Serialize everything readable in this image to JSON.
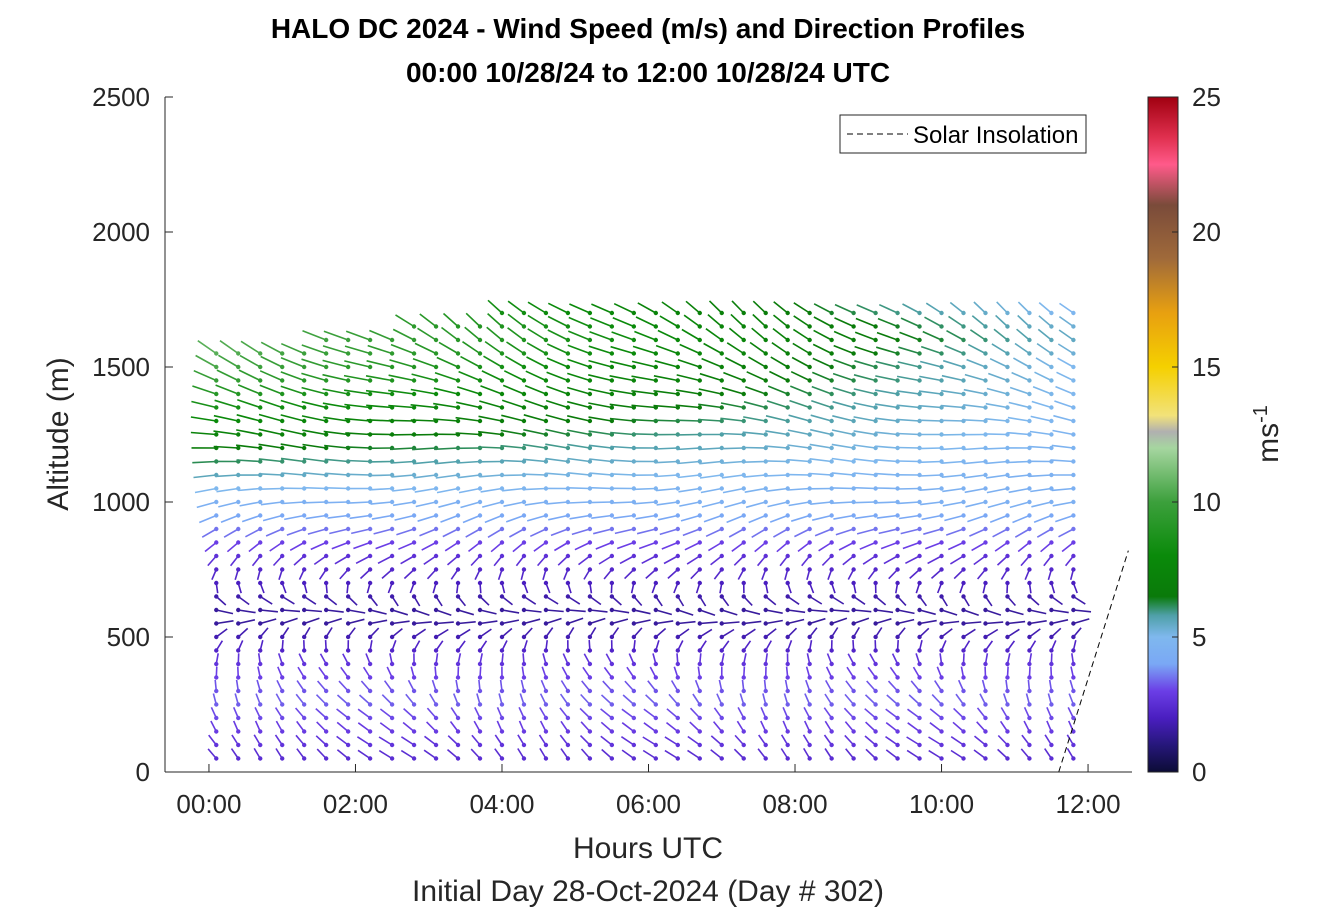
{
  "chart_data": {
    "type": "wind-barb profile",
    "title": "HALO DC 2024 - Wind Speed (m/s) and Direction Profiles",
    "subtitle": "00:00 10/28/24 to 12:00 10/28/24  UTC",
    "xlabel": "Hours UTC",
    "xlabel2": "Initial Day 28-Oct-2024 (Day # 302)",
    "ylabel": "Altitude (m)",
    "colorbar_label_base": "ms",
    "colorbar_label_exp": "-1",
    "x_ticks": [
      "00:00",
      "02:00",
      "04:00",
      "06:00",
      "08:00",
      "10:00",
      "12:00"
    ],
    "x_tick_hours": [
      0,
      2,
      4,
      6,
      8,
      10,
      12
    ],
    "xlim_hours": [
      -0.6,
      12.6
    ],
    "y_ticks": [
      "0",
      "500",
      "1000",
      "1500",
      "2000",
      "2500"
    ],
    "y_tick_values": [
      0,
      500,
      1000,
      1500,
      2000,
      2500
    ],
    "ylim": [
      0,
      2500
    ],
    "colorbar_ticks": [
      "0",
      "5",
      "10",
      "15",
      "20",
      "25"
    ],
    "colorbar_tick_values": [
      0,
      5,
      10,
      15,
      20,
      25
    ],
    "clim": [
      0,
      25
    ],
    "legend": {
      "placement": "top-right",
      "entries": [
        {
          "label": "Solar Insolation",
          "style": "dashed",
          "color": "#000000"
        }
      ]
    },
    "grid": false,
    "profile_hours": {
      "start": 0.1,
      "end": 11.8,
      "step": 0.3
    },
    "profile_levels": [
      {
        "altitude": 50,
        "speed": 2.5,
        "direction": 330
      },
      {
        "altitude": 100,
        "speed": 2.7,
        "direction": 330
      },
      {
        "altitude": 150,
        "speed": 2.9,
        "direction": 335
      },
      {
        "altitude": 200,
        "speed": 3.1,
        "direction": 335
      },
      {
        "altitude": 250,
        "speed": 3.3,
        "direction": 340
      },
      {
        "altitude": 300,
        "speed": 3.2,
        "direction": 345
      },
      {
        "altitude": 350,
        "speed": 3.0,
        "direction": 350
      },
      {
        "altitude": 400,
        "speed": 2.7,
        "direction": 355
      },
      {
        "altitude": 450,
        "speed": 2.2,
        "direction": 10
      },
      {
        "altitude": 500,
        "speed": 1.8,
        "direction": 30
      },
      {
        "altitude": 550,
        "speed": 1.5,
        "direction": 70
      },
      {
        "altitude": 600,
        "speed": 1.5,
        "direction": 110
      },
      {
        "altitude": 650,
        "speed": 1.7,
        "direction": 150
      },
      {
        "altitude": 700,
        "speed": 2.0,
        "direction": 180
      },
      {
        "altitude": 750,
        "speed": 2.3,
        "direction": 200
      },
      {
        "altitude": 800,
        "speed": 2.6,
        "direction": 215
      },
      {
        "altitude": 850,
        "speed": 3.0,
        "direction": 225
      },
      {
        "altitude": 900,
        "speed": 3.5,
        "direction": 235
      },
      {
        "altitude": 950,
        "speed": 4.0,
        "direction": 245
      },
      {
        "altitude": 1000,
        "speed": 4.5,
        "direction": 255
      },
      {
        "altitude": 1050,
        "speed": 5.0,
        "direction": 262
      },
      {
        "altitude": 1100,
        "speed": 5.6,
        "direction": 268
      },
      {
        "altitude": 1150,
        "speed": 6.2,
        "direction": 272
      },
      {
        "altitude": 1200,
        "speed": 6.8,
        "direction": 275
      },
      {
        "altitude": 1250,
        "speed": 7.4,
        "direction": 280
      },
      {
        "altitude": 1300,
        "speed": 8.0,
        "direction": 285
      },
      {
        "altitude": 1350,
        "speed": 8.6,
        "direction": 290
      },
      {
        "altitude": 1400,
        "speed": 9.2,
        "direction": 295
      },
      {
        "altitude": 1450,
        "speed": 9.8,
        "direction": 300
      },
      {
        "altitude": 1500,
        "speed": 10.3,
        "direction": 305
      },
      {
        "altitude": 1550,
        "speed": 10.6,
        "direction": 310
      },
      {
        "altitude": 1600,
        "speed": 10.8,
        "direction": 315
      },
      {
        "altitude": 1650,
        "speed": 10.6,
        "direction": 318
      },
      {
        "altitude": 1700,
        "speed": 10.2,
        "direction": 320
      }
    ],
    "top_altitude_start": 1550,
    "top_altitude_end": 1850,
    "top_altitude_end_after_9h": 1720,
    "speed_change_per_hour_above_1000m": -0.45,
    "solar_insolation": {
      "hour_start": 11.6,
      "hour_end": 12.55,
      "altitude_start": 0,
      "altitude_end": 820
    },
    "colormap": [
      {
        "v": 0.0,
        "color": "#0c0c36"
      },
      {
        "v": 1.0,
        "color": "#26177a"
      },
      {
        "v": 2.0,
        "color": "#4a1ec0"
      },
      {
        "v": 3.0,
        "color": "#6b3ee6"
      },
      {
        "v": 4.0,
        "color": "#7aa8f5"
      },
      {
        "v": 5.0,
        "color": "#7fb8ee"
      },
      {
        "v": 5.8,
        "color": "#4fa0a8"
      },
      {
        "v": 6.5,
        "color": "#0a7a0a"
      },
      {
        "v": 8.0,
        "color": "#0a8a0a"
      },
      {
        "v": 10.0,
        "color": "#3ca03c"
      },
      {
        "v": 12.0,
        "color": "#a6d6a0"
      },
      {
        "v": 12.6,
        "color": "#b0b0b0"
      },
      {
        "v": 13.2,
        "color": "#f2e27a"
      },
      {
        "v": 15.0,
        "color": "#f5d000"
      },
      {
        "v": 17.0,
        "color": "#e8a010"
      },
      {
        "v": 19.0,
        "color": "#a06a3a"
      },
      {
        "v": 21.0,
        "color": "#7a4b3a"
      },
      {
        "v": 22.5,
        "color": "#ff5a8a"
      },
      {
        "v": 23.5,
        "color": "#e0304f"
      },
      {
        "v": 25.0,
        "color": "#a00010"
      }
    ]
  }
}
